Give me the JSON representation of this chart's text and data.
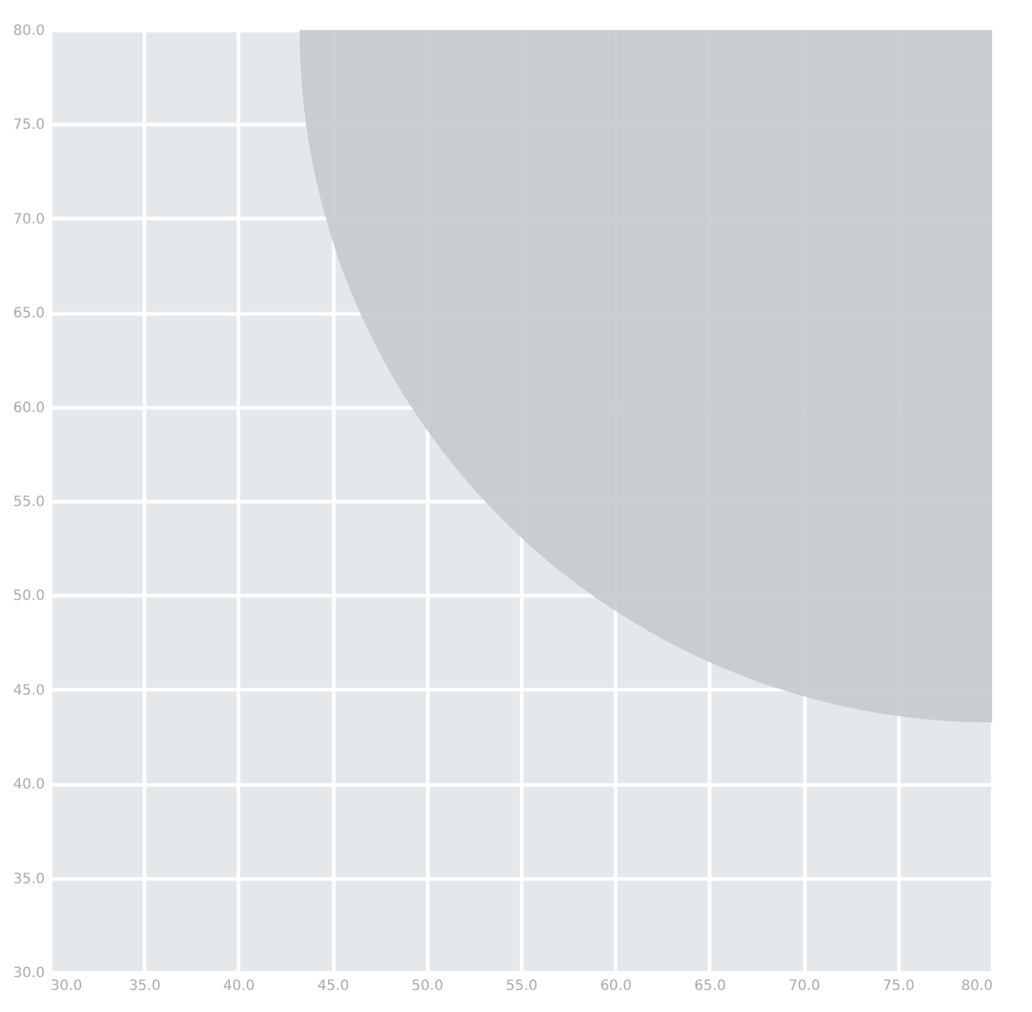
{
  "chart_data": {
    "type": "bubble",
    "x": [
      80
    ],
    "series": [
      {
        "color": "#c6cacd",
        "values": [
          80
        ],
        "sizes": [
          1
        ]
      }
    ],
    "xlim": [
      30,
      80
    ],
    "ylim": [
      30,
      80
    ],
    "xticks": [
      {
        "value": 30,
        "label": "30.0"
      },
      {
        "value": 35,
        "label": "35.0"
      },
      {
        "value": 40,
        "label": "40.0"
      },
      {
        "value": 45,
        "label": "45.0"
      },
      {
        "value": 50,
        "label": "50.0"
      },
      {
        "value": 55,
        "label": "55.0"
      },
      {
        "value": 60,
        "label": "60.0"
      },
      {
        "value": 65,
        "label": "65.0"
      },
      {
        "value": 70,
        "label": "70.0"
      },
      {
        "value": 75,
        "label": "75.0"
      },
      {
        "value": 80,
        "label": "80.0"
      }
    ],
    "yticks": [
      {
        "value": 30,
        "label": "30.0"
      },
      {
        "value": 35,
        "label": "35.0"
      },
      {
        "value": 40,
        "label": "40.0"
      },
      {
        "value": 45,
        "label": "45.0"
      },
      {
        "value": 50,
        "label": "50.0"
      },
      {
        "value": 55,
        "label": "55.0"
      },
      {
        "value": 60,
        "label": "60.0"
      },
      {
        "value": 65,
        "label": "65.0"
      },
      {
        "value": 70,
        "label": "70.0"
      },
      {
        "value": 75,
        "label": "75.0"
      },
      {
        "value": 80,
        "label": "80.0"
      }
    ],
    "grid": true
  }
}
